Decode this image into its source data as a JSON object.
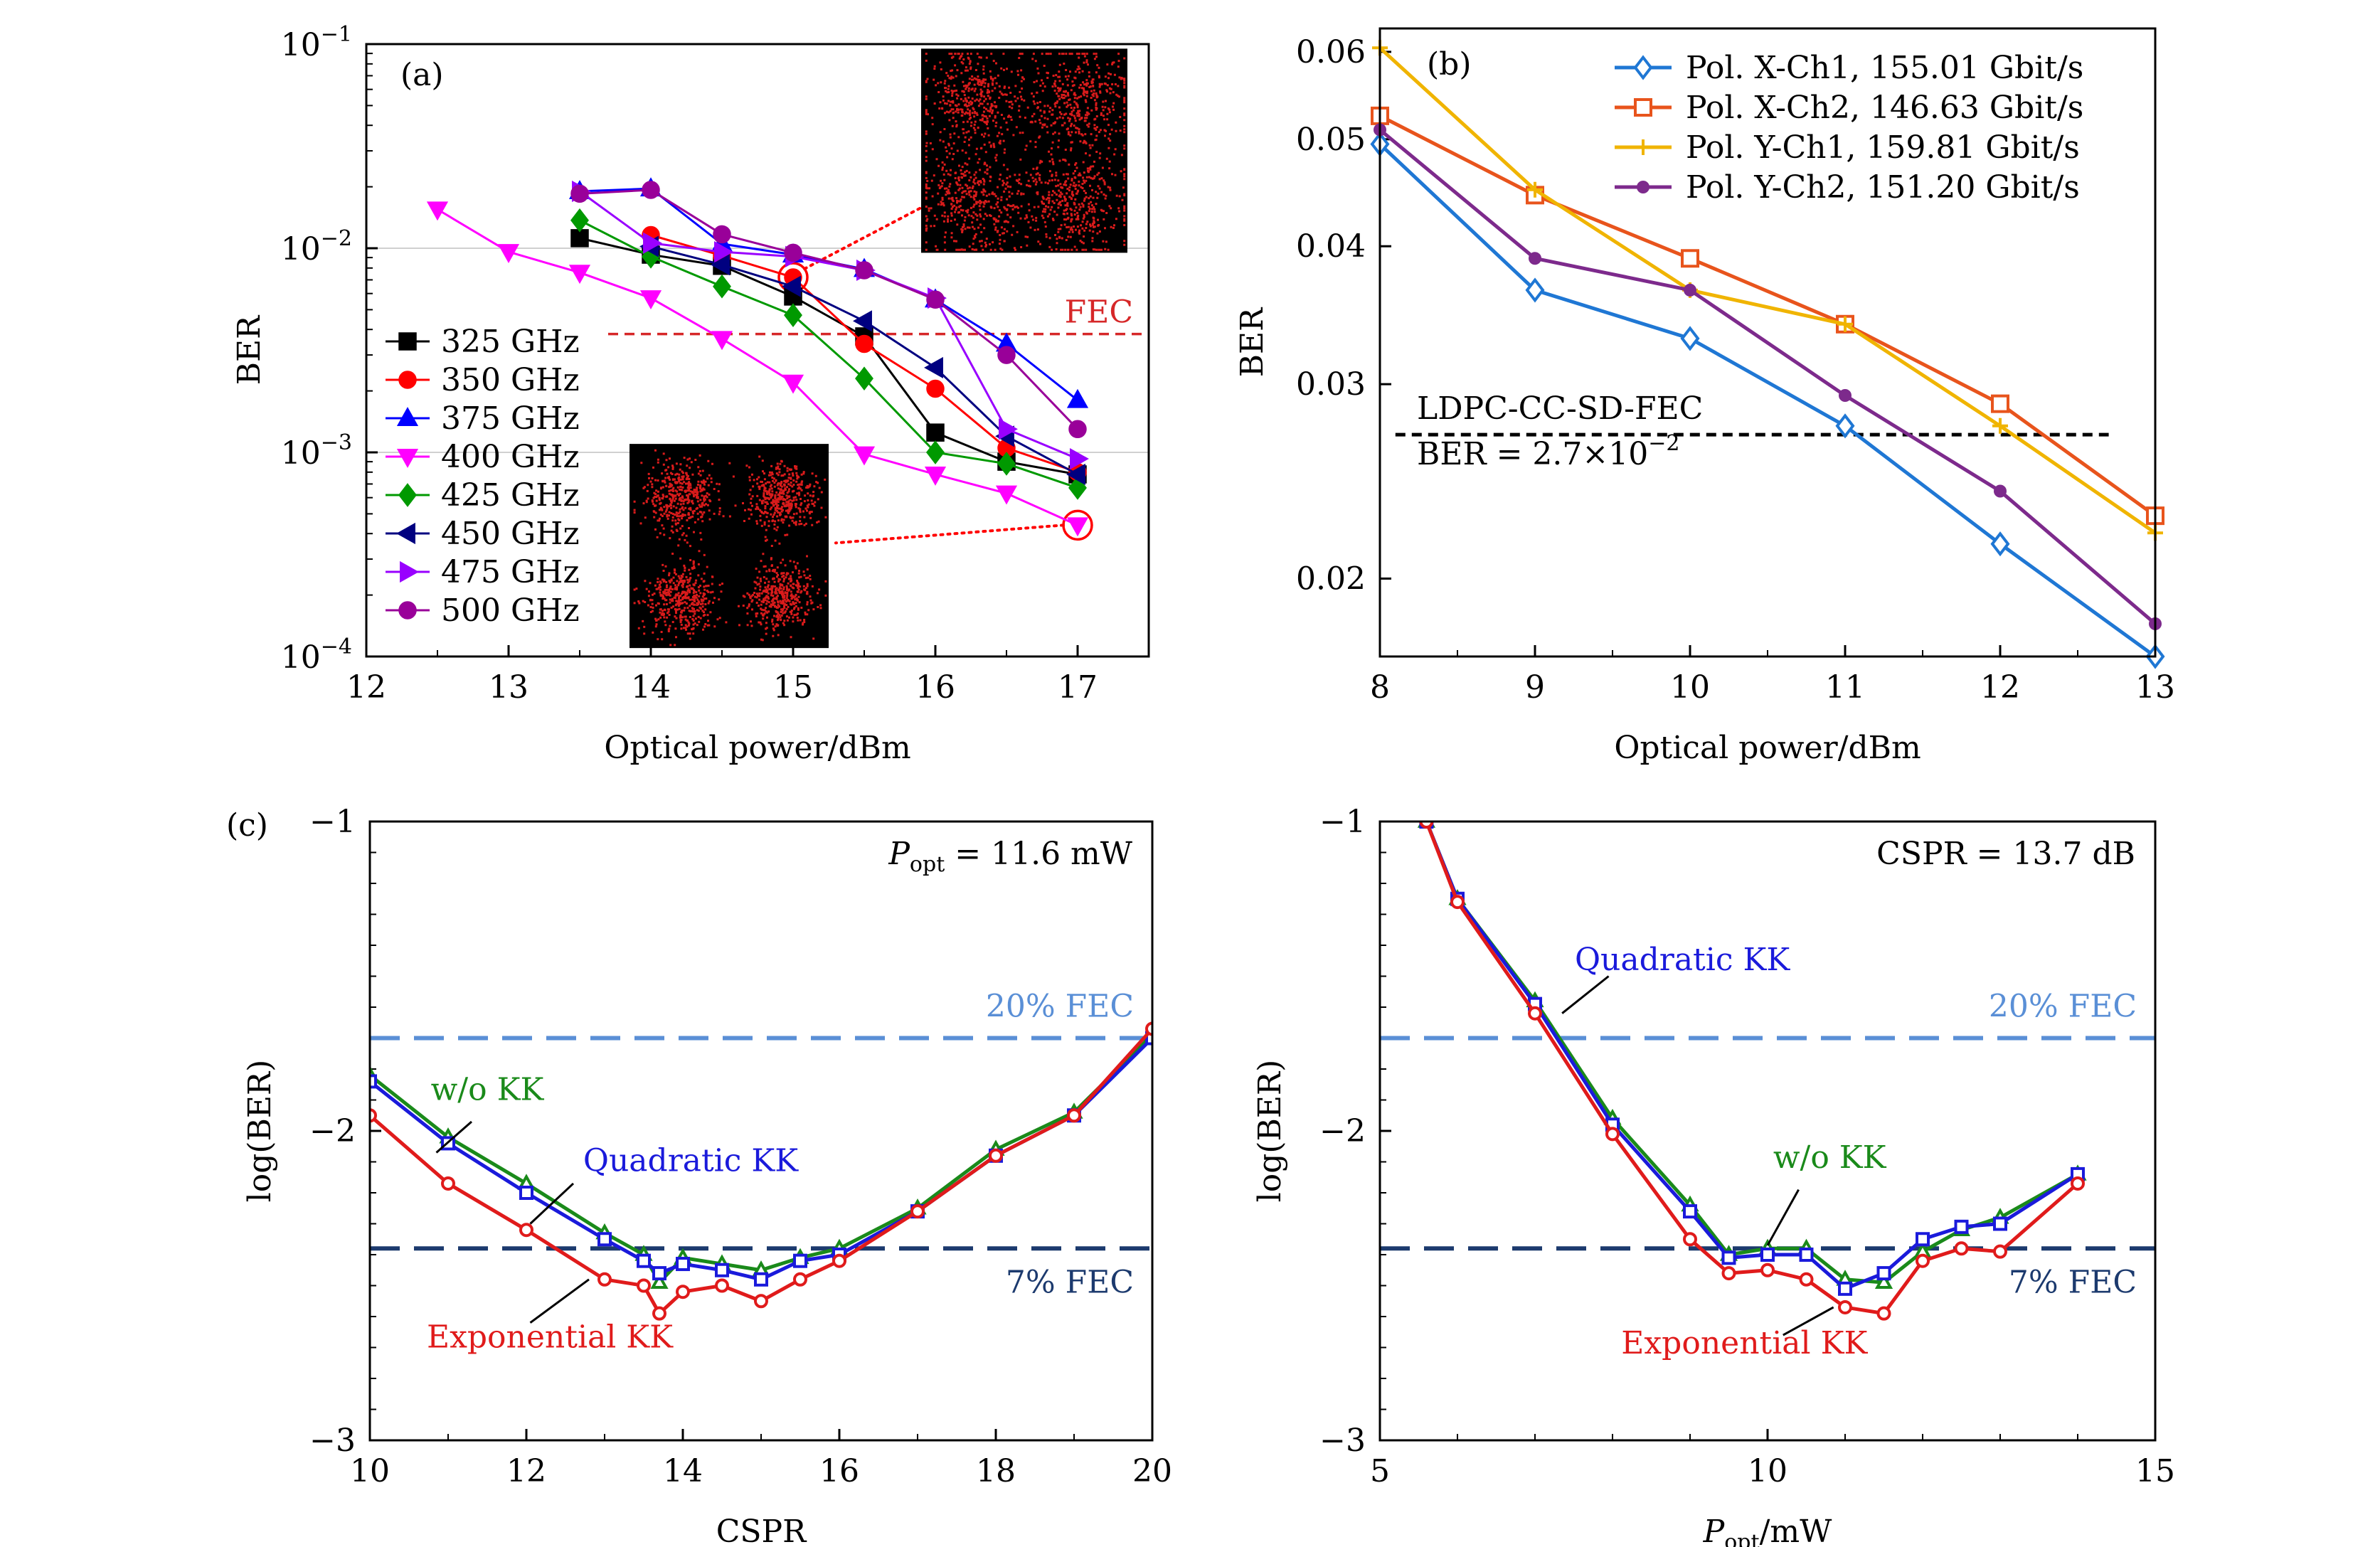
{
  "chart_data": [
    {
      "id": "a",
      "type": "line",
      "panel_label": "(a)",
      "xlabel": "Optical power/dBm",
      "ylabel": "BER",
      "yscale": "log",
      "xlim": [
        12,
        17.5
      ],
      "ylim": [
        0.0001,
        0.1
      ],
      "xticks": [
        12,
        13,
        14,
        15,
        16,
        17
      ],
      "yticks": [
        {
          "value": 0.1,
          "base": "10",
          "exp": "−1"
        },
        {
          "value": 0.01,
          "base": "10",
          "exp": "−2"
        },
        {
          "value": 0.001,
          "base": "10",
          "exp": "−3"
        },
        {
          "value": 0.0001,
          "base": "10",
          "exp": "−4"
        }
      ],
      "grid_y": [
        0.01,
        0.001
      ],
      "legend_position": "bottom-left",
      "hline": {
        "y": 0.0038,
        "x_from": 13.7,
        "x_to": 17.5,
        "label": "FEC",
        "color": "#d62728"
      },
      "insets": [
        {
          "name": "constellation-upper",
          "x_from": 15.9,
          "x_to": 17.35,
          "y_top": 0.095,
          "y_bottom": 0.0095
        },
        {
          "name": "constellation-lower",
          "x_from": 13.85,
          "x_to": 15.25,
          "y_top": 0.0011,
          "y_bottom": 0.00011
        }
      ],
      "highlights": [
        {
          "x": 15,
          "y": 0.0072,
          "leader_to": [
            15.9,
            0.0158
          ]
        },
        {
          "x": 17,
          "y": 0.00044,
          "leader_to": [
            15.3,
            0.00036
          ]
        }
      ],
      "series": [
        {
          "name": "325 GHz",
          "color": "#000000",
          "marker": "square",
          "x": [
            13.5,
            14,
            14.5,
            15,
            15.5,
            16,
            16.5,
            17
          ],
          "y": [
            0.0112,
            0.0093,
            0.0082,
            0.0058,
            0.0037,
            0.00125,
            0.0009,
            0.00078
          ]
        },
        {
          "name": "350 GHz",
          "color": "#ff0000",
          "marker": "circle",
          "x": [
            14,
            14.5,
            15,
            15.5,
            16,
            16.5,
            17
          ],
          "y": [
            0.0116,
            0.0092,
            0.0072,
            0.0034,
            0.00205,
            0.00105,
            0.0008
          ]
        },
        {
          "name": "375 GHz",
          "color": "#0000ff",
          "marker": "triangle-up",
          "x": [
            13.5,
            14,
            14.5,
            15,
            15.5,
            16,
            16.5,
            17
          ],
          "y": [
            0.019,
            0.0196,
            0.0105,
            0.0093,
            0.0079,
            0.0056,
            0.0034,
            0.0018
          ]
        },
        {
          "name": "400 GHz",
          "color": "#ff00ff",
          "marker": "triangle-down",
          "x": [
            12.5,
            13,
            13.5,
            14,
            14.5,
            15,
            15.5,
            16,
            16.5,
            17
          ],
          "y": [
            0.0155,
            0.0096,
            0.0076,
            0.0057,
            0.0036,
            0.0022,
            0.00098,
            0.00078,
            0.00063,
            0.00044
          ]
        },
        {
          "name": "425 GHz",
          "color": "#009900",
          "marker": "diamond",
          "x": [
            13.5,
            14,
            14.5,
            15,
            15.5,
            16,
            16.5,
            17
          ],
          "y": [
            0.0137,
            0.0091,
            0.0065,
            0.0047,
            0.0023,
            0.001,
            0.00088,
            0.00067
          ]
        },
        {
          "name": "450 GHz",
          "color": "#000080",
          "marker": "triangle-left",
          "x": [
            14,
            14.5,
            15,
            15.5,
            16,
            16.5,
            17
          ],
          "y": [
            0.0102,
            0.0083,
            0.0065,
            0.0044,
            0.0026,
            0.0012,
            0.00078
          ]
        },
        {
          "name": "475 GHz",
          "color": "#9900ff",
          "marker": "triangle-right",
          "x": [
            13.5,
            14,
            14.5,
            15,
            15.5,
            16,
            16.5,
            17
          ],
          "y": [
            0.019,
            0.0106,
            0.0096,
            0.0091,
            0.0078,
            0.0057,
            0.0013,
            0.00093
          ]
        },
        {
          "name": "500 GHz",
          "color": "#990099",
          "marker": "circle",
          "x": [
            13.5,
            14,
            14.5,
            15,
            15.5,
            16,
            16.5,
            17
          ],
          "y": [
            0.0185,
            0.0193,
            0.0117,
            0.0095,
            0.0078,
            0.0056,
            0.003,
            0.0013
          ]
        }
      ]
    },
    {
      "id": "b",
      "type": "line",
      "panel_label": "(b)",
      "xlabel": "Optical power/dBm",
      "ylabel": "BER",
      "yscale": "log",
      "xlim": [
        8,
        13
      ],
      "ylim": [
        0.017,
        0.063
      ],
      "xticks": [
        8,
        9,
        10,
        11,
        12,
        13
      ],
      "yticks": [
        {
          "value": 0.06,
          "label": "0.06"
        },
        {
          "value": 0.05,
          "label": "0.05"
        },
        {
          "value": 0.04,
          "label": "0.04"
        },
        {
          "value": 0.03,
          "label": "0.03"
        },
        {
          "value": 0.02,
          "label": "0.02"
        }
      ],
      "legend_position": "top-right",
      "hline": {
        "y": 0.027,
        "x_from": 8.1,
        "x_to": 12.7,
        "color": "#000000",
        "label_line1": "LDPC-CC-SD-FEC",
        "label_line2": "BER = 2.7×10",
        "label_line2_exp": "−2"
      },
      "series": [
        {
          "name": "Pol. X-Ch1, 155.01 Gbit/s",
          "color": "#1f77d4",
          "marker": "diamond-open",
          "x": [
            8,
            9,
            10,
            11,
            12,
            13
          ],
          "y": [
            0.0495,
            0.0365,
            0.033,
            0.0275,
            0.0215,
            0.017
          ]
        },
        {
          "name": "Pol. X-Ch2, 146.63 Gbit/s",
          "color": "#e8541c",
          "marker": "square-open",
          "x": [
            8,
            9,
            10,
            11,
            12,
            13
          ],
          "y": [
            0.0525,
            0.0445,
            0.039,
            0.034,
            0.0288,
            0.0228
          ]
        },
        {
          "name": "Pol. Y-Ch1, 159.81 Gbit/s",
          "color": "#f0b400",
          "marker": "plus",
          "x": [
            8,
            9,
            10,
            11,
            12,
            13
          ],
          "y": [
            0.0605,
            0.045,
            0.0365,
            0.034,
            0.0275,
            0.022
          ]
        },
        {
          "name": "Pol. Y-Ch2, 151.20 Gbit/s",
          "color": "#7d2a8c",
          "marker": "circle-small",
          "x": [
            8,
            9,
            10,
            11,
            12,
            13
          ],
          "y": [
            0.051,
            0.039,
            0.0365,
            0.0293,
            0.024,
            0.0182
          ]
        }
      ]
    },
    {
      "id": "c-left",
      "type": "line",
      "panel_label": "(c)",
      "xlabel": "CSPR",
      "ylabel": "log(BER)",
      "xlim": [
        10,
        20
      ],
      "ylim": [
        -3,
        -1
      ],
      "xticks": [
        10,
        12,
        14,
        16,
        18,
        20
      ],
      "yticks": [
        {
          "value": -1,
          "label": "−1"
        },
        {
          "value": -2,
          "label": "−2"
        },
        {
          "value": -3,
          "label": "−3"
        }
      ],
      "condition": {
        "sym": "P",
        "sub": "opt",
        "rest": " = 11.6 mW"
      },
      "hlines": [
        {
          "y": -1.7,
          "label": "20% FEC",
          "color": "#5a8fd6"
        },
        {
          "y": -2.38,
          "label": "7% FEC",
          "color": "#1c3a6e"
        }
      ],
      "annotations": [
        {
          "text": "w/o KK",
          "color": "#1a8a1a",
          "x": 11.5,
          "y": -1.9,
          "leader_from": [
            11.3,
            -1.97
          ],
          "leader_to": [
            10.85,
            -2.07
          ]
        },
        {
          "text": "Quadratic KK",
          "color": "#1a1adb",
          "x": 14.1,
          "y": -2.13,
          "leader_from": [
            12.6,
            -2.17
          ],
          "leader_to": [
            12.05,
            -2.3
          ]
        },
        {
          "text": "Exponential KK",
          "color": "#e01b1b",
          "x": 12.3,
          "y": -2.7,
          "leader_from": [
            12.05,
            -2.62
          ],
          "leader_to": [
            12.8,
            -2.48
          ]
        }
      ],
      "series": [
        {
          "name": "w/o KK",
          "color": "#1a8a1a",
          "marker": "triangle-open",
          "x": [
            10,
            11,
            12,
            13,
            13.5,
            13.7,
            14,
            14.5,
            15,
            15.5,
            16,
            17,
            18,
            19,
            20
          ],
          "y": [
            -1.82,
            -2.02,
            -2.17,
            -2.33,
            -2.4,
            -2.49,
            -2.41,
            -2.43,
            -2.45,
            -2.41,
            -2.38,
            -2.25,
            -2.06,
            -1.94,
            -1.69
          ]
        },
        {
          "name": "Quadratic KK",
          "color": "#1a1adb",
          "marker": "square-open",
          "x": [
            10,
            11,
            12,
            13,
            13.5,
            13.7,
            14,
            14.5,
            15,
            15.5,
            16,
            17,
            18,
            19,
            20
          ],
          "y": [
            -1.84,
            -2.04,
            -2.2,
            -2.35,
            -2.42,
            -2.46,
            -2.43,
            -2.45,
            -2.48,
            -2.42,
            -2.4,
            -2.26,
            -2.08,
            -1.95,
            -1.7
          ]
        },
        {
          "name": "Exponential KK",
          "color": "#e01b1b",
          "marker": "circle-open",
          "x": [
            10,
            11,
            12,
            13,
            13.5,
            13.7,
            14,
            14.5,
            15,
            15.5,
            16,
            17,
            18,
            19,
            20
          ],
          "y": [
            -1.95,
            -2.17,
            -2.32,
            -2.48,
            -2.5,
            -2.59,
            -2.52,
            -2.5,
            -2.55,
            -2.48,
            -2.42,
            -2.26,
            -2.08,
            -1.95,
            -1.67
          ]
        }
      ]
    },
    {
      "id": "c-right",
      "type": "line",
      "xlabel_sym": "P",
      "xlabel_sub": "opt",
      "xlabel_rest": "/mW",
      "ylabel": "log(BER)",
      "xlim": [
        5,
        15
      ],
      "ylim": [
        -3,
        -1
      ],
      "xticks": [
        5,
        10,
        15
      ],
      "yticks": [
        {
          "value": -1,
          "label": "−1"
        },
        {
          "value": -2,
          "label": "−2"
        },
        {
          "value": -3,
          "label": "−3"
        }
      ],
      "condition": {
        "text": "CSPR = 13.7 dB"
      },
      "hlines": [
        {
          "y": -1.7,
          "label": "20% FEC",
          "color": "#5a8fd6"
        },
        {
          "y": -2.38,
          "label": "7% FEC",
          "color": "#1c3a6e"
        }
      ],
      "annotations": [
        {
          "text": "Quadratic KK",
          "color": "#1a1adb",
          "x": 8.9,
          "y": -1.48,
          "leader_from": [
            7.95,
            -1.5
          ],
          "leader_to": [
            7.35,
            -1.62
          ]
        },
        {
          "text": "w/o KK",
          "color": "#1a8a1a",
          "x": 10.8,
          "y": -2.12,
          "leader_from": [
            10.4,
            -2.19
          ],
          "leader_to": [
            10.0,
            -2.37
          ]
        },
        {
          "text": "Exponential KK",
          "color": "#e01b1b",
          "x": 9.7,
          "y": -2.72,
          "leader_from": [
            10.2,
            -2.66
          ],
          "leader_to": [
            10.85,
            -2.57
          ]
        }
      ],
      "series": [
        {
          "name": "w/o KK",
          "color": "#1a8a1a",
          "marker": "triangle-open",
          "x": [
            5.6,
            6,
            7,
            8,
            9,
            9.5,
            10,
            10.5,
            11,
            11.5,
            12,
            12.5,
            13,
            14
          ],
          "y": [
            -1.0,
            -1.25,
            -1.58,
            -1.96,
            -2.24,
            -2.4,
            -2.38,
            -2.38,
            -2.48,
            -2.49,
            -2.39,
            -2.32,
            -2.28,
            -2.14
          ]
        },
        {
          "name": "Quadratic KK",
          "color": "#1a1adb",
          "marker": "square-open",
          "x": [
            5.6,
            6,
            7,
            8,
            9,
            9.5,
            10,
            10.5,
            11,
            11.5,
            12,
            12.5,
            13,
            14
          ],
          "y": [
            -1.0,
            -1.25,
            -1.59,
            -1.98,
            -2.26,
            -2.41,
            -2.4,
            -2.4,
            -2.51,
            -2.46,
            -2.35,
            -2.31,
            -2.3,
            -2.14
          ]
        },
        {
          "name": "Exponential KK",
          "color": "#e01b1b",
          "marker": "circle-open",
          "x": [
            5.6,
            6,
            7,
            8,
            9,
            9.5,
            10,
            10.5,
            11,
            11.5,
            12,
            12.5,
            13,
            14
          ],
          "y": [
            -1.0,
            -1.26,
            -1.62,
            -2.01,
            -2.35,
            -2.46,
            -2.45,
            -2.48,
            -2.57,
            -2.59,
            -2.42,
            -2.38,
            -2.39,
            -2.17
          ]
        }
      ]
    }
  ]
}
